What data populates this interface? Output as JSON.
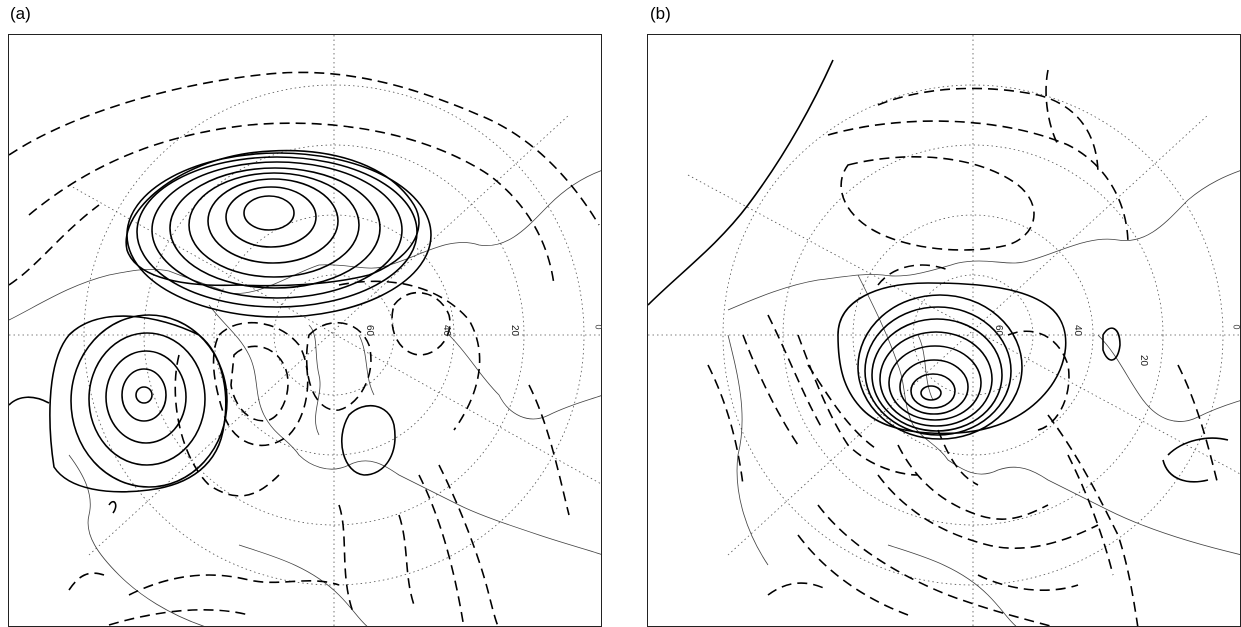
{
  "panels": [
    {
      "label": "(a)",
      "lat_labels": [
        "60",
        "40",
        "20"
      ],
      "edge_label": "0"
    },
    {
      "label": "(b)",
      "lat_labels": [
        "60",
        "40",
        "20"
      ],
      "edge_label": "0"
    }
  ],
  "colors": {
    "contour": "#000000",
    "grid": "#555555",
    "coast": "#444444",
    "background": "#ffffff"
  }
}
